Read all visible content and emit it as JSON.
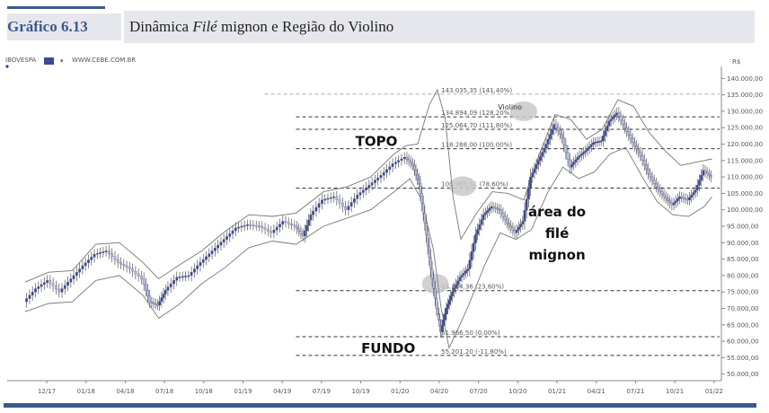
{
  "header": {
    "figure_label": "Gráfico 6.13",
    "title_before": "Dinâmica ",
    "title_italic": "Filé",
    "title_after": " mignon e Região do Violino"
  },
  "toolbar": {
    "ticker": "IBOVESPA",
    "site": "WWW.CEBE.COM.BR",
    "scale_label": "R$"
  },
  "colors": {
    "bull": "#3f4a8f",
    "bear": "#b9bed8",
    "line": "#777777",
    "header_blue": "#3a5a8a",
    "header_bg": "#e6e7ec"
  },
  "chart_data": {
    "type": "line",
    "title": "",
    "x_ticks": [
      "12/17",
      "01/18",
      "04/18",
      "07/18",
      "10/18",
      "01/19",
      "04/19",
      "07/19",
      "10/19",
      "01/20",
      "04/20",
      "07/20",
      "10/20",
      "01/21",
      "04/21",
      "07/21",
      "10/21",
      "01/22"
    ],
    "y_ticks": [
      140000,
      135000,
      130000,
      125000,
      120000,
      115000,
      110000,
      105000,
      100000,
      95000,
      90000,
      85000,
      80000,
      75000,
      70000,
      65000,
      60000,
      55000,
      50000
    ],
    "y_tick_labels": [
      "140.000,00",
      "135.000,00",
      "130.000,00",
      "125.000,00",
      "120.000,00",
      "115.000,00",
      "110.000,00",
      "105.000,00",
      "100.000,00",
      "95.000,00",
      "90.000,00",
      "85.000,00",
      "80.000,00",
      "75.000,00",
      "70.000,00",
      "65.000,00",
      "60.000,00",
      "55.000,00",
      "50.000,00"
    ],
    "ylim": [
      48000,
      142000
    ],
    "x_range": [
      0,
      17.6
    ],
    "fib_levels": [
      {
        "label": "143.035,35 (141,40%)",
        "value": 135200
      },
      {
        "label": "134.894,09 (128,20%)",
        "value": 128300
      },
      {
        "label": "125.064,70 (111,80%)",
        "value": 124500
      },
      {
        "label": "118.288,00 (100,00%)",
        "value": 118600
      },
      {
        "label": "105.985,31 (78,60%)",
        "value": 106600
      },
      {
        "label": "83.184,36 (23,60%)",
        "value": 75400
      },
      {
        "label": "61.966,50 (0,00%)",
        "value": 61400
      },
      {
        "label": "55.201,20 (-11,80%)",
        "value": 55700
      }
    ],
    "annotations": [
      {
        "text": "TOPO",
        "x": 8.95,
        "y": 119500
      },
      {
        "text": "FUNDO",
        "x": 9.25,
        "y": 56500
      },
      {
        "text": "Violino",
        "x": 12.35,
        "y": 130500
      }
    ],
    "area_label": [
      "área do",
      "filé",
      "mignon"
    ],
    "area_label_pos": {
      "x": 13.55,
      "y": 98000
    },
    "highlight_circles": [
      {
        "x": 10.45,
        "y": 77500
      },
      {
        "x": 11.15,
        "y": 107200
      },
      {
        "x": 12.7,
        "y": 130000
      }
    ],
    "price_path": [
      [
        0.0,
        72000
      ],
      [
        0.3,
        76000
      ],
      [
        0.6,
        78500
      ],
      [
        0.9,
        75000
      ],
      [
        1.2,
        79000
      ],
      [
        1.5,
        83000
      ],
      [
        1.8,
        86500
      ],
      [
        2.1,
        87500
      ],
      [
        2.4,
        84000
      ],
      [
        2.7,
        82000
      ],
      [
        3.0,
        79000
      ],
      [
        3.2,
        72000
      ],
      [
        3.4,
        71000
      ],
      [
        3.6,
        75500
      ],
      [
        3.9,
        79500
      ],
      [
        4.2,
        80000
      ],
      [
        4.5,
        84000
      ],
      [
        4.8,
        87500
      ],
      [
        5.1,
        91000
      ],
      [
        5.4,
        94500
      ],
      [
        5.7,
        95500
      ],
      [
        6.0,
        95000
      ],
      [
        6.3,
        93000
      ],
      [
        6.6,
        96500
      ],
      [
        6.9,
        95000
      ],
      [
        7.1,
        92000
      ],
      [
        7.3,
        98500
      ],
      [
        7.6,
        103000
      ],
      [
        7.9,
        104000
      ],
      [
        8.2,
        100000
      ],
      [
        8.5,
        104500
      ],
      [
        8.8,
        107500
      ],
      [
        9.1,
        110500
      ],
      [
        9.4,
        114000
      ],
      [
        9.7,
        116000
      ],
      [
        9.9,
        113500
      ],
      [
        10.05,
        108000
      ],
      [
        10.2,
        96000
      ],
      [
        10.35,
        82000
      ],
      [
        10.5,
        70000
      ],
      [
        10.6,
        63000
      ],
      [
        10.75,
        70000
      ],
      [
        10.9,
        75000
      ],
      [
        11.1,
        79500
      ],
      [
        11.3,
        82000
      ],
      [
        11.5,
        92500
      ],
      [
        11.7,
        98500
      ],
      [
        11.9,
        101000
      ],
      [
        12.1,
        100000
      ],
      [
        12.3,
        96000
      ],
      [
        12.5,
        93000
      ],
      [
        12.7,
        96500
      ],
      [
        12.9,
        110000
      ],
      [
        13.1,
        115000
      ],
      [
        13.3,
        120000
      ],
      [
        13.5,
        126000
      ],
      [
        13.7,
        122000
      ],
      [
        13.9,
        113000
      ],
      [
        14.1,
        116000
      ],
      [
        14.3,
        118000
      ],
      [
        14.5,
        120500
      ],
      [
        14.7,
        121000
      ],
      [
        14.9,
        127000
      ],
      [
        15.1,
        129500
      ],
      [
        15.3,
        125000
      ],
      [
        15.5,
        120500
      ],
      [
        15.7,
        116500
      ],
      [
        15.9,
        111000
      ],
      [
        16.1,
        107000
      ],
      [
        16.3,
        104000
      ],
      [
        16.5,
        101500
      ],
      [
        16.7,
        104000
      ],
      [
        16.9,
        103000
      ],
      [
        17.1,
        106000
      ],
      [
        17.3,
        112000
      ],
      [
        17.5,
        110000
      ]
    ],
    "upper_band": [
      [
        0.0,
        78000
      ],
      [
        0.6,
        81000
      ],
      [
        1.2,
        81500
      ],
      [
        1.8,
        89500
      ],
      [
        2.4,
        90000
      ],
      [
        3.0,
        84000
      ],
      [
        3.4,
        79000
      ],
      [
        3.9,
        83000
      ],
      [
        4.5,
        87500
      ],
      [
        5.1,
        93500
      ],
      [
        5.7,
        98500
      ],
      [
        6.3,
        98000
      ],
      [
        6.9,
        99000
      ],
      [
        7.6,
        105500
      ],
      [
        8.2,
        107000
      ],
      [
        8.8,
        110000
      ],
      [
        9.4,
        117000
      ],
      [
        9.7,
        119500
      ],
      [
        10.0,
        120000
      ],
      [
        10.3,
        132000
      ],
      [
        10.5,
        136500
      ],
      [
        10.7,
        128000
      ],
      [
        10.9,
        104000
      ],
      [
        11.1,
        91000
      ],
      [
        11.5,
        99000
      ],
      [
        11.9,
        105500
      ],
      [
        12.3,
        105000
      ],
      [
        12.7,
        103000
      ],
      [
        13.1,
        117000
      ],
      [
        13.5,
        129000
      ],
      [
        13.9,
        127500
      ],
      [
        14.3,
        121500
      ],
      [
        14.7,
        124500
      ],
      [
        15.1,
        133500
      ],
      [
        15.5,
        131500
      ],
      [
        15.9,
        123500
      ],
      [
        16.3,
        118000
      ],
      [
        16.7,
        113500
      ],
      [
        17.1,
        114500
      ],
      [
        17.5,
        115500
      ]
    ],
    "lower_band": [
      [
        0.0,
        69000
      ],
      [
        0.6,
        71500
      ],
      [
        1.2,
        72000
      ],
      [
        1.8,
        78500
      ],
      [
        2.4,
        80000
      ],
      [
        3.0,
        74000
      ],
      [
        3.4,
        67000
      ],
      [
        3.9,
        71000
      ],
      [
        4.5,
        77500
      ],
      [
        5.1,
        82500
      ],
      [
        5.7,
        88500
      ],
      [
        6.3,
        90500
      ],
      [
        6.9,
        89500
      ],
      [
        7.6,
        95000
      ],
      [
        8.2,
        97500
      ],
      [
        8.8,
        100000
      ],
      [
        9.4,
        105500
      ],
      [
        9.8,
        109500
      ],
      [
        10.1,
        103000
      ],
      [
        10.4,
        88000
      ],
      [
        10.6,
        70000
      ],
      [
        10.8,
        58000
      ],
      [
        11.0,
        63000
      ],
      [
        11.3,
        71000
      ],
      [
        11.7,
        83000
      ],
      [
        12.1,
        93000
      ],
      [
        12.5,
        91000
      ],
      [
        12.9,
        94000
      ],
      [
        13.3,
        105000
      ],
      [
        13.7,
        113000
      ],
      [
        14.1,
        109500
      ],
      [
        14.5,
        111500
      ],
      [
        14.9,
        117000
      ],
      [
        15.3,
        119000
      ],
      [
        15.7,
        110500
      ],
      [
        16.1,
        102500
      ],
      [
        16.5,
        98500
      ],
      [
        16.9,
        98000
      ],
      [
        17.3,
        101000
      ],
      [
        17.5,
        104000
      ]
    ]
  }
}
